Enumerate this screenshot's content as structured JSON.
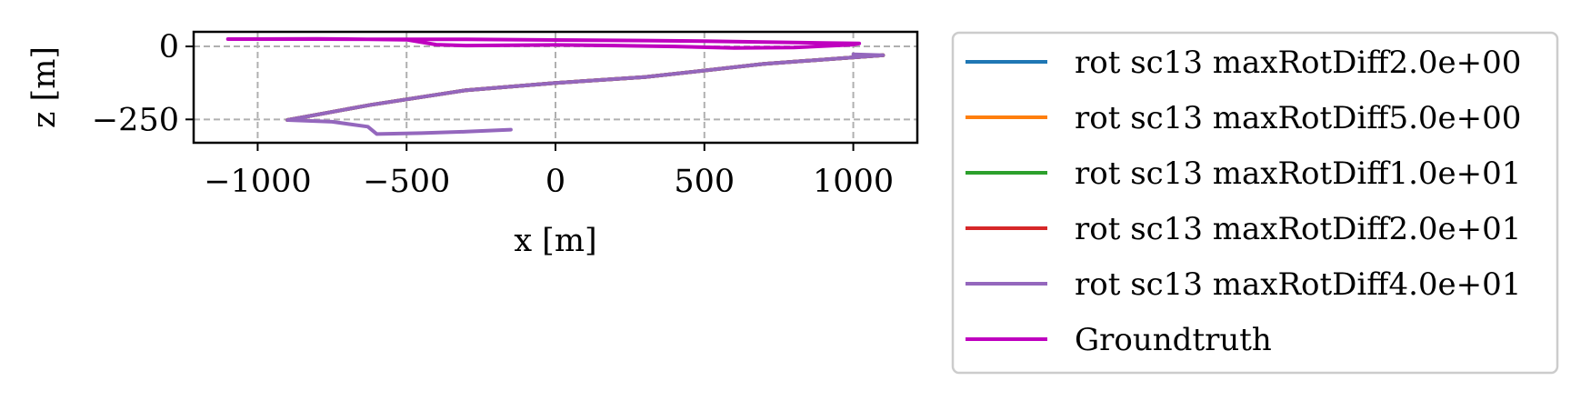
{
  "chart_data": {
    "type": "line",
    "xlabel": "x [m]",
    "ylabel": "z [m]",
    "xlim": [
      -1215,
      1215
    ],
    "ylim": [
      -330,
      50
    ],
    "xticks": [
      -1000,
      -500,
      0,
      500,
      1000
    ],
    "xtick_labels": [
      "−1000",
      "−500",
      "0",
      "500",
      "1000"
    ],
    "yticks": [
      0,
      -250
    ],
    "ytick_labels": [
      "0",
      "−250"
    ],
    "grid": true,
    "legend_position": "outside-right",
    "series": [
      {
        "name": "rot sc13 maxRotDiff2.0e+00",
        "color": "#1f77b4",
        "x": [
          -900,
          -620,
          -300,
          0,
          300,
          700,
          1100
        ],
        "y": [
          -252,
          -200,
          -150,
          -125,
          -105,
          -60,
          -30
        ]
      },
      {
        "name": "rot sc13 maxRotDiff5.0e+00",
        "color": "#ff7f0e",
        "x": [
          -900,
          -620,
          -300,
          0,
          300,
          700,
          1100
        ],
        "y": [
          -252,
          -200,
          -150,
          -125,
          -105,
          -60,
          -30
        ]
      },
      {
        "name": "rot sc13 maxRotDiff1.0e+01",
        "color": "#2ca02c",
        "x": [
          -900,
          -620,
          -300,
          0,
          300,
          700,
          1100
        ],
        "y": [
          -252,
          -200,
          -150,
          -125,
          -105,
          -60,
          -30
        ]
      },
      {
        "name": "rot sc13 maxRotDiff2.0e+01",
        "color": "#d62728",
        "x": [
          -900,
          -620,
          -300,
          0,
          300,
          700,
          1100
        ],
        "y": [
          -252,
          -200,
          -150,
          -125,
          -105,
          -60,
          -30
        ]
      },
      {
        "name": "rot sc13 maxRotDiff4.0e+01",
        "color": "#9467bd",
        "x": [
          -150,
          -300,
          -450,
          -600,
          -630,
          -750,
          -900,
          -620,
          -300,
          0,
          300,
          700,
          1100,
          1000
        ],
        "y": [
          -285,
          -292,
          -297,
          -300,
          -275,
          -258,
          -252,
          -200,
          -150,
          -125,
          -105,
          -60,
          -30,
          -27
        ]
      },
      {
        "name": "Groundtruth",
        "color": "#bf00bf",
        "x": [
          -1100,
          -800,
          -500,
          -400,
          -300,
          0,
          200,
          400,
          600,
          800,
          1000,
          1020,
          900,
          700,
          500,
          300,
          0,
          -300,
          -500,
          -800,
          -1100
        ],
        "y": [
          25,
          26,
          23,
          6,
          3,
          5,
          3,
          0,
          -5,
          -4,
          6,
          10,
          12,
          15,
          18,
          20,
          22,
          24,
          24,
          25,
          25
        ]
      }
    ]
  }
}
